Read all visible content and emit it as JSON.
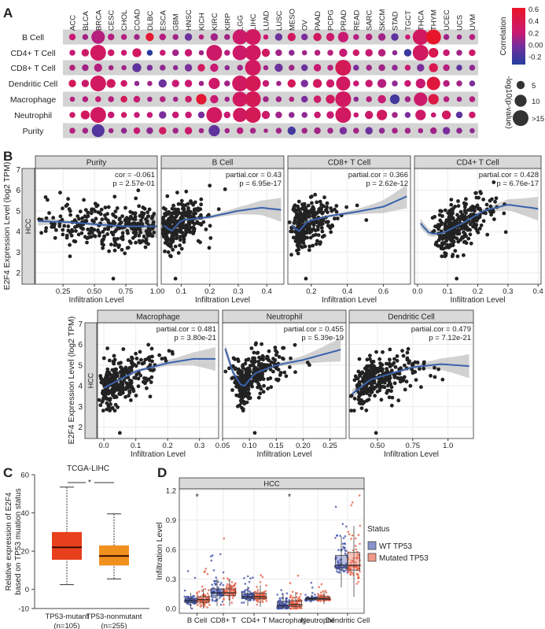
{
  "panel_labels": {
    "a": "A",
    "b": "B",
    "c": "C",
    "d": "D"
  },
  "chart_data": [
    {
      "panel": "A",
      "type": "scatter",
      "columns": [
        "ACC",
        "BLCA",
        "BRCA",
        "CESC",
        "CHOL",
        "COAD",
        "DLBC",
        "ESCA",
        "GBM",
        "HNSC",
        "KICH",
        "KIRC",
        "KIRP",
        "LGG",
        "LIHC",
        "LUAD",
        "LUSC",
        "MESO",
        "OV",
        "PAAD",
        "PCPG",
        "PRAD",
        "READ",
        "SARC",
        "SKCM",
        "STAD",
        "TGCT",
        "THCA",
        "THYM",
        "UCEC",
        "UCS",
        "UVM"
      ],
      "rows": [
        "B Cell",
        "CD4+ T Cell",
        "CD8+ T Cell",
        "Dendritic Cell",
        "Macrophage",
        "Neutrophil",
        "Purity"
      ],
      "correlation": [
        [
          0.2,
          0.1,
          0.15,
          0.15,
          0.15,
          0.1,
          0.55,
          0.15,
          0.1,
          -0.05,
          0.15,
          0.1,
          0.1,
          0.25,
          0.3,
          0.2,
          -0.05,
          0.3,
          0,
          0.3,
          0.25,
          0.2,
          0.15,
          0.15,
          0.1,
          -0.1,
          0.2,
          0.3,
          0.6,
          0.1,
          0.1,
          0.15
        ],
        [
          0.2,
          0.25,
          0.3,
          0.25,
          0.2,
          0.3,
          -0.3,
          0.2,
          0.1,
          0.2,
          0.1,
          0.25,
          0.15,
          0.25,
          0.3,
          0.3,
          0.1,
          0.05,
          0.1,
          0.15,
          0.15,
          0.2,
          0.25,
          0.2,
          0.15,
          0.05,
          -0.25,
          0.3,
          0.4,
          0.2,
          0.1,
          0.25
        ],
        [
          0.15,
          0.1,
          0.15,
          0.1,
          0.1,
          -0.1,
          0,
          0.05,
          0.05,
          0,
          0.3,
          0.2,
          0.05,
          0.1,
          0.3,
          0.1,
          -0.05,
          0.1,
          -0.05,
          0.2,
          0.15,
          0.35,
          0,
          0.1,
          0.1,
          0.05,
          0.2,
          0,
          0.4,
          0.15,
          -0.1,
          0.05
        ],
        [
          0.35,
          0.25,
          0.3,
          0.3,
          0.25,
          0.05,
          0.1,
          -0.05,
          0.2,
          0.2,
          0.1,
          0.25,
          0.1,
          0.3,
          0.35,
          0.2,
          0.1,
          0.35,
          0,
          0.3,
          0.25,
          0.3,
          0.2,
          0.2,
          0.15,
          0.05,
          0.2,
          0.2,
          0.5,
          0.15,
          0.1,
          0
        ],
        [
          0.15,
          0.15,
          0.2,
          0.15,
          0.35,
          0.2,
          0.1,
          0.15,
          0.1,
          0.25,
          0.55,
          0.2,
          0.1,
          0.3,
          0.35,
          0.1,
          0.1,
          0.15,
          0,
          0.25,
          0.3,
          0.3,
          0.05,
          0.15,
          0.2,
          -0.2,
          0.1,
          0.25,
          0.45,
          0.15,
          0.1,
          0.15
        ],
        [
          0.25,
          0.3,
          0.3,
          0.2,
          0.25,
          0.2,
          0.2,
          0,
          0.2,
          0.2,
          0,
          0.3,
          0.2,
          0.3,
          0.35,
          0.25,
          0.1,
          0.05,
          0.05,
          0.2,
          0.2,
          0.3,
          0.2,
          0.25,
          0.3,
          0.1,
          0,
          0.25,
          0.2,
          0.3,
          -0.1,
          0.25
        ],
        [
          0.15,
          0.1,
          -0.15,
          0.1,
          0.05,
          0.2,
          0.05,
          0.3,
          0.1,
          0.25,
          0.1,
          -0.1,
          0.1,
          0.15,
          0.1,
          0.1,
          0.1,
          -0.2,
          0.1,
          0.1,
          0.1,
          0,
          0.1,
          -0.05,
          0.05,
          0.1,
          0.1,
          0.1,
          0.1,
          0,
          0.05,
          0.05
        ]
      ],
      "neg_log10_p": [
        [
          3,
          2,
          12,
          3,
          2,
          2,
          5,
          3,
          2,
          4,
          1,
          4,
          2,
          14,
          15,
          1,
          4,
          5,
          3,
          5,
          5,
          8,
          2,
          3,
          4,
          4,
          1,
          15,
          14,
          2,
          1,
          2
        ],
        [
          2,
          4,
          15,
          3,
          2,
          6,
          2,
          2,
          3,
          4,
          1,
          15,
          2,
          14,
          15,
          5,
          3,
          2,
          1,
          2,
          2,
          5,
          3,
          4,
          4,
          1,
          4,
          15,
          7,
          3,
          2,
          3
        ],
        [
          2,
          3,
          5,
          1,
          1,
          6,
          2,
          2,
          1,
          4,
          4,
          5,
          1,
          2,
          15,
          1,
          5,
          2,
          3,
          4,
          2,
          15,
          2,
          2,
          3,
          2,
          2,
          4,
          6,
          3,
          2,
          2
        ],
        [
          4,
          4,
          15,
          6,
          3,
          1,
          1,
          5,
          4,
          4,
          1,
          9,
          2,
          15,
          15,
          3,
          1,
          5,
          4,
          6,
          5,
          13,
          2,
          4,
          6,
          2,
          3,
          7,
          12,
          3,
          2,
          2
        ],
        [
          1,
          2,
          2,
          2,
          3,
          3,
          1,
          2,
          1,
          3,
          8,
          5,
          1,
          14,
          15,
          2,
          2,
          1,
          3,
          4,
          6,
          15,
          1,
          2,
          5,
          7,
          2,
          12,
          8,
          2,
          1,
          2
        ],
        [
          2,
          6,
          15,
          3,
          2,
          2,
          2,
          4,
          3,
          3,
          3,
          15,
          3,
          13,
          15,
          5,
          3,
          2,
          2,
          3,
          4,
          15,
          1,
          5,
          8,
          2,
          2,
          8,
          1,
          6,
          3,
          3
        ],
        [
          2,
          2,
          11,
          1,
          2,
          3,
          3,
          4,
          2,
          4,
          1,
          9,
          1,
          3,
          2,
          0,
          2,
          5,
          2,
          3,
          2,
          4,
          2,
          4,
          2,
          2,
          2,
          1,
          3,
          4,
          2,
          1
        ]
      ],
      "color_legend": {
        "title": "Correlation",
        "ticks": [
          0.6,
          0.4,
          0.2,
          0.0,
          -0.2
        ],
        "tick_labels": [
          "0.6",
          "0.4",
          "0.2",
          "0.00",
          "-0.2"
        ],
        "range": [
          -0.33,
          0.62
        ],
        "colors": [
          "#2a3d9e",
          "#7a2e9c",
          "#c81a72",
          "#e8162b"
        ]
      },
      "size_legend": {
        "title": "-log10(p-value)",
        "values": [
          5,
          10,
          15
        ],
        "labels": [
          "5",
          "10",
          ">15"
        ]
      },
      "grid_band_color": "#d3d3d3"
    },
    {
      "panel": "B",
      "type": "scatter",
      "ylabel": "E2F4 Expression Level (log2 TPM)",
      "xlabel": "Infiltration Level",
      "row_strip": "HCC",
      "ylim": [
        1.45,
        7.05
      ],
      "yticks": [
        2,
        3,
        4,
        5,
        6,
        7
      ],
      "point_color": "#222222",
      "fit_color": "#3a62ad",
      "stat_color": "#d7191c",
      "facets": [
        {
          "title": "Purity",
          "stat1": "cor = -0.061",
          "stat2": "p = 2.57e-01",
          "xlim": [
            0.03,
            1.0
          ],
          "xticks": [
            0.25,
            0.5,
            0.75,
            1.0
          ],
          "xtick_labels": [
            "0.25",
            "0.50",
            "0.75",
            "1.00"
          ],
          "loess": [
            [
              0.05,
              4.5
            ],
            [
              0.3,
              4.45
            ],
            [
              0.5,
              4.35
            ],
            [
              0.75,
              4.25
            ],
            [
              1.0,
              4.25
            ]
          ]
        },
        {
          "title": "B Cell",
          "stat1": "partial.cor = 0.43",
          "stat2": "p = 6.95e-17",
          "xlim": [
            0.03,
            0.46
          ],
          "xticks": [
            0.1,
            0.2,
            0.3,
            0.4
          ],
          "xtick_labels": [
            "0.1",
            "0.2",
            "0.3",
            "0.4"
          ],
          "loess": [
            [
              0.04,
              4.3
            ],
            [
              0.065,
              4.0
            ],
            [
              0.1,
              4.55
            ],
            [
              0.2,
              4.7
            ],
            [
              0.3,
              5.0
            ],
            [
              0.38,
              5.15
            ],
            [
              0.45,
              5.05
            ]
          ]
        },
        {
          "title": "CD8+ T Cell",
          "stat1": "partial.cor = 0.366",
          "stat2": "p = 2.62e-12",
          "xlim": [
            0.07,
            0.75
          ],
          "xticks": [
            0.2,
            0.4,
            0.6
          ],
          "xtick_labels": [
            "0.2",
            "0.4",
            "0.6"
          ],
          "loess": [
            [
              0.09,
              4.3
            ],
            [
              0.13,
              4.0
            ],
            [
              0.18,
              4.5
            ],
            [
              0.3,
              4.75
            ],
            [
              0.45,
              4.95
            ],
            [
              0.6,
              5.2
            ],
            [
              0.73,
              5.7
            ]
          ]
        },
        {
          "title": "CD4+ T Cell",
          "stat1": "partial.cor = 0.428",
          "stat2": "p = 6.76e-17",
          "xlim": [
            -0.01,
            0.41
          ],
          "xticks": [
            0,
            0.1,
            0.2,
            0.3,
            0.4
          ],
          "xtick_labels": [
            "0.0",
            "0.1",
            "0.2",
            "0.3",
            "0.4"
          ],
          "loess": [
            [
              0.01,
              4.4
            ],
            [
              0.04,
              3.9
            ],
            [
              0.08,
              3.9
            ],
            [
              0.15,
              4.4
            ],
            [
              0.22,
              5.0
            ],
            [
              0.3,
              5.3
            ],
            [
              0.4,
              5.1
            ]
          ]
        },
        {
          "title": "Macrophage",
          "stat1": "partial.cor = 0.481",
          "stat2": "p = 3.80e-21",
          "xlim": [
            -0.02,
            0.36
          ],
          "xticks": [
            0,
            0.1,
            0.2,
            0.3
          ],
          "xtick_labels": [
            "0.0",
            "0.1",
            "0.2",
            "0.3"
          ],
          "loess": [
            [
              0,
              3.9
            ],
            [
              0.05,
              4.3
            ],
            [
              0.1,
              4.7
            ],
            [
              0.2,
              5.1
            ],
            [
              0.28,
              5.3
            ],
            [
              0.35,
              5.3
            ]
          ]
        },
        {
          "title": "Neutrophil",
          "stat1": "partial.cor = 0.455",
          "stat2": "p = 5.39e-19",
          "xlim": [
            0.05,
            0.28
          ],
          "xticks": [
            0.05,
            0.1,
            0.15,
            0.2,
            0.25
          ],
          "xtick_labels": [
            "0.05",
            "0.10",
            "0.15",
            "0.20",
            "0.25"
          ],
          "loess": [
            [
              0.055,
              5.8
            ],
            [
              0.07,
              4.6
            ],
            [
              0.088,
              3.9
            ],
            [
              0.11,
              4.6
            ],
            [
              0.15,
              5.0
            ],
            [
              0.2,
              5.25
            ],
            [
              0.27,
              5.75
            ]
          ]
        },
        {
          "title": "Dendritic Cell",
          "stat1": "partial.cor = 0.479",
          "stat2": "p = 7.12e-21",
          "xlim": [
            0.3,
            1.18
          ],
          "xticks": [
            0.5,
            0.75,
            1.0
          ],
          "xtick_labels": [
            "0.50",
            "0.75",
            "1.0"
          ],
          "loess": [
            [
              0.32,
              3.6
            ],
            [
              0.45,
              4.3
            ],
            [
              0.6,
              4.6
            ],
            [
              0.75,
              4.9
            ],
            [
              0.95,
              5.05
            ],
            [
              1.15,
              4.95
            ]
          ]
        }
      ]
    },
    {
      "panel": "C",
      "type": "box",
      "title": "TCGA-LIHC",
      "ylabel_line1": "Relative expression of E2F4",
      "ylabel_line2": "based on TP53 muation status",
      "ylim": [
        -10,
        60
      ],
      "yticks": [
        -10,
        0,
        20,
        40,
        60
      ],
      "significance": "*",
      "groups": [
        {
          "label": "TP53-mutant",
          "n_label": "(n=105)",
          "min": 2.5,
          "q1": 15.5,
          "median": 22,
          "q3": 30,
          "max": 53.5,
          "color": "#e8401c"
        },
        {
          "label": "TP53-nonmutant",
          "n_label": "(n=255)",
          "min": 5.5,
          "q1": 12.5,
          "median": 17.5,
          "q3": 23,
          "max": 39.5,
          "color": "#f0901e"
        }
      ]
    },
    {
      "panel": "D",
      "type": "box",
      "strip": "HCC",
      "ylabel": "Infiltration Level",
      "ylim": [
        -0.05,
        1.27
      ],
      "yticks": [
        0,
        0.3,
        0.6,
        0.9,
        1.2
      ],
      "ytick_labels": [
        "0.0",
        "0.3",
        "0.6",
        "0.9",
        "1.2"
      ],
      "legend": {
        "title": "Status",
        "entries": [
          "WT TP53",
          "Mutated TP53"
        ],
        "colors": [
          "#3a4ba8",
          "#e8553a"
        ]
      },
      "categories": [
        "B Cell",
        "CD8+ T",
        "CD4+ T",
        "Macrophage",
        "Neutrophil",
        "Dendritic Cell"
      ],
      "significance": [
        "*",
        "",
        "",
        "*",
        "",
        ""
      ],
      "series": [
        {
          "name": "WT TP53",
          "q1": [
            0.06,
            0.13,
            0.1,
            0.01,
            0.09,
            0.41
          ],
          "median": [
            0.08,
            0.16,
            0.12,
            0.03,
            0.1,
            0.44
          ],
          "q3": [
            0.1,
            0.2,
            0.15,
            0.07,
            0.11,
            0.54
          ],
          "max": [
            0.44,
            0.58,
            0.37,
            0.26,
            0.27,
            1.16
          ]
        },
        {
          "name": "Mutated TP53",
          "q1": [
            0.065,
            0.13,
            0.1,
            0.02,
            0.09,
            0.39
          ],
          "median": [
            0.09,
            0.16,
            0.12,
            0.04,
            0.1,
            0.44
          ],
          "q3": [
            0.12,
            0.2,
            0.155,
            0.08,
            0.12,
            0.57
          ],
          "max": [
            0.45,
            0.72,
            0.4,
            0.35,
            0.26,
            1.16
          ]
        }
      ]
    }
  ]
}
